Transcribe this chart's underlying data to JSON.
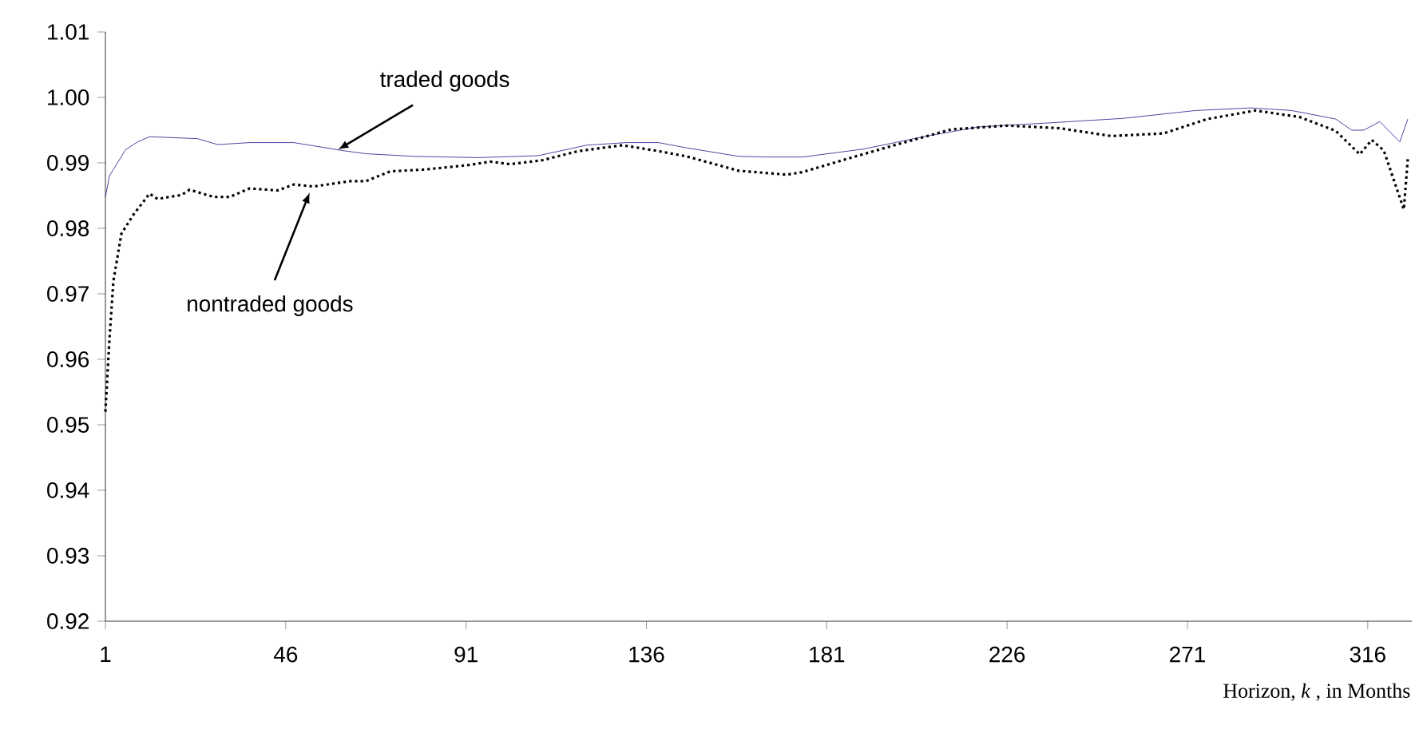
{
  "chart_data": {
    "type": "line",
    "xlabel": "Horizon, *k* , in Months",
    "xlim": [
      1,
      327
    ],
    "ylim": [
      0.92,
      1.01
    ],
    "xticks": [
      1,
      46,
      91,
      136,
      181,
      226,
      271,
      316
    ],
    "yticks": [
      0.92,
      0.93,
      0.94,
      0.95,
      0.96,
      0.97,
      0.98,
      0.99,
      {
        "value": 1.0,
        "label": "1.00"
      },
      1.01
    ],
    "series": [
      {
        "color": "#1a1a8c",
        "line_style": "solid",
        "x": [
          1,
          2,
          6,
          9,
          12,
          24,
          29,
          37,
          48,
          60,
          66,
          78,
          94,
          109,
          121,
          131,
          139,
          146,
          159,
          166,
          175,
          190,
          206,
          219,
          239,
          255,
          273,
          287,
          297,
          308,
          312,
          315,
          319,
          324,
          326
        ],
        "values": [
          0.9848,
          0.988,
          0.992,
          0.9932,
          0.994,
          0.9937,
          0.9928,
          0.9931,
          0.9931,
          0.9919,
          0.9914,
          0.991,
          0.9908,
          0.9911,
          0.9927,
          0.9931,
          0.9931,
          0.9923,
          0.991,
          0.9909,
          0.9909,
          0.9921,
          0.9941,
          0.9955,
          0.9962,
          0.9968,
          0.998,
          0.9984,
          0.998,
          0.9967,
          0.995,
          0.995,
          0.9963,
          0.9932,
          0.9967
        ]
      },
      {
        "color": "#000000",
        "line_style": "dotted",
        "x": [
          1,
          2,
          3,
          5,
          8,
          12,
          14,
          20,
          22,
          28,
          32,
          37,
          44,
          48,
          53,
          62,
          66,
          72,
          81,
          92,
          97,
          102,
          110,
          119,
          130,
          139,
          146,
          159,
          171,
          175,
          186,
          199,
          212,
          226,
          239,
          252,
          265,
          276,
          288,
          299,
          308,
          314,
          317,
          320,
          325,
          326
        ],
        "values": [
          0.952,
          0.963,
          0.972,
          0.9792,
          0.9821,
          0.9853,
          0.9845,
          0.9851,
          0.9859,
          0.9848,
          0.9848,
          0.9861,
          0.9858,
          0.9867,
          0.9864,
          0.9872,
          0.9872,
          0.9887,
          0.989,
          0.9897,
          0.9902,
          0.9898,
          0.9904,
          0.9918,
          0.9927,
          0.9918,
          0.991,
          0.9888,
          0.9882,
          0.9886,
          0.9906,
          0.9929,
          0.9951,
          0.9957,
          0.9953,
          0.9941,
          0.9945,
          0.9967,
          0.998,
          0.997,
          0.9949,
          0.9913,
          0.9935,
          0.9919,
          0.9829,
          0.9906
        ]
      }
    ],
    "annotations": [
      {
        "text": "traded goods",
        "x": 59,
        "y": 0.992
      },
      {
        "text": "nontraded goods",
        "x": 52,
        "y": 0.9855
      }
    ]
  }
}
